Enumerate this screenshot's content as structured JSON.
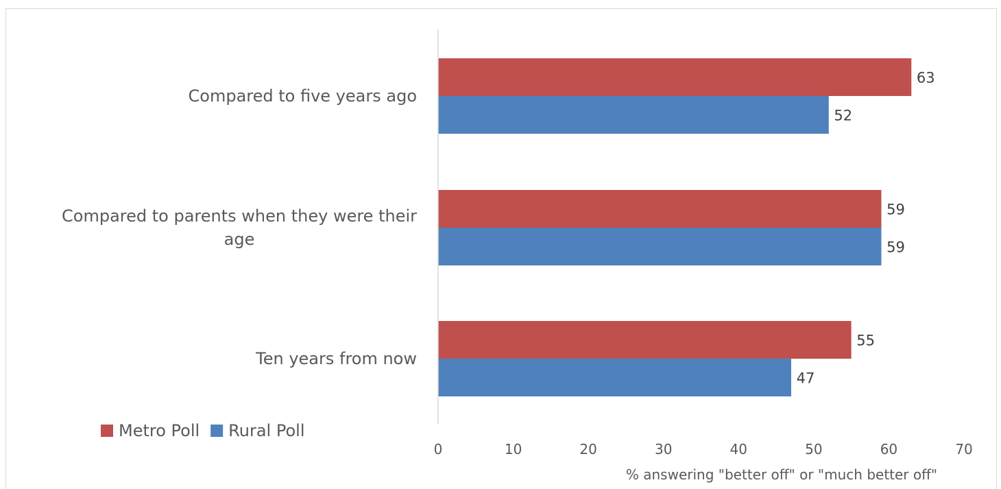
{
  "chart_data": {
    "type": "bar",
    "orientation": "horizontal",
    "categories": [
      [
        "Compared to five years ago"
      ],
      [
        "Compared to parents when they were their",
        "age"
      ],
      [
        "Ten years from now"
      ]
    ],
    "series": [
      {
        "name": "Metro Poll",
        "color": "#C0504D",
        "values": [
          63,
          59,
          55
        ]
      },
      {
        "name": "Rural Poll",
        "color": "#4F81BD",
        "values": [
          52,
          59,
          47
        ]
      }
    ],
    "xlabel": "% answering \"better off\" or \"much better off\"",
    "xlim": [
      0,
      70
    ],
    "xticks": [
      0,
      10,
      20,
      30,
      40,
      50,
      60,
      70
    ],
    "grid": false,
    "data_labels": true,
    "legend": {
      "position": "bottom-left"
    }
  }
}
